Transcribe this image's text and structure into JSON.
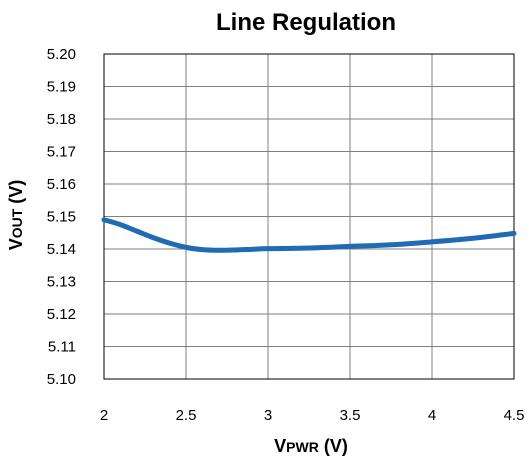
{
  "chart_data": {
    "type": "line",
    "title": "Line Regulation",
    "xlabel": {
      "main": "V",
      "sub": "PWR",
      "unit": " (V)"
    },
    "ylabel": {
      "main": "V",
      "sub": "OUT",
      "unit": " (V)"
    },
    "xlim": [
      2,
      4.5
    ],
    "ylim": [
      5.1,
      5.2
    ],
    "xticks": [
      "2",
      "2.5",
      "3",
      "3.5",
      "4",
      "4.5"
    ],
    "xtick_values": [
      2,
      2.5,
      3,
      3.5,
      4,
      4.5
    ],
    "yticks": [
      "5.10",
      "5.11",
      "5.12",
      "5.13",
      "5.14",
      "5.15",
      "5.16",
      "5.17",
      "5.18",
      "5.19",
      "5.20"
    ],
    "ytick_values": [
      5.1,
      5.11,
      5.12,
      5.13,
      5.14,
      5.15,
      5.16,
      5.17,
      5.18,
      5.19,
      5.2
    ],
    "grid": true,
    "series": [
      {
        "color": "#1f6bb5",
        "x": [
          2.0,
          2.1,
          2.2,
          2.3,
          2.4,
          2.5,
          2.6,
          2.7,
          2.8,
          2.9,
          3.0,
          3.25,
          3.5,
          3.75,
          4.0,
          4.25,
          4.5
        ],
        "y": [
          5.149,
          5.1475,
          5.1455,
          5.1435,
          5.1418,
          5.1405,
          5.1398,
          5.1396,
          5.1397,
          5.1399,
          5.1401,
          5.1403,
          5.1408,
          5.1413,
          5.1422,
          5.1433,
          5.1448
        ]
      }
    ]
  }
}
